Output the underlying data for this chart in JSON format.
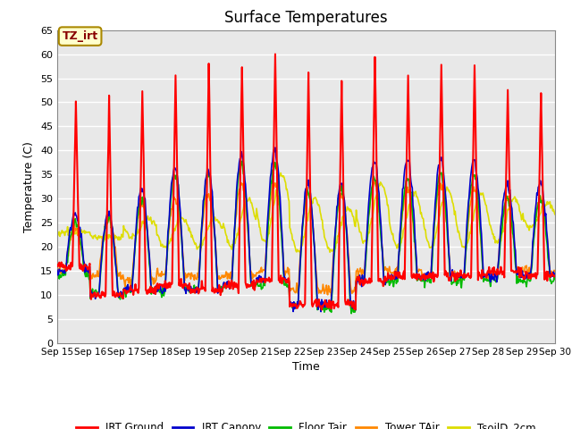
{
  "title": "Surface Temperatures",
  "xlabel": "Time",
  "ylabel": "Temperature (C)",
  "ylim": [
    0,
    65
  ],
  "yticks": [
    0,
    5,
    10,
    15,
    20,
    25,
    30,
    35,
    40,
    45,
    50,
    55,
    60,
    65
  ],
  "bg_color": "#ffffff",
  "plot_bg_color": "#e8e8e8",
  "legend_entries": [
    "IRT Ground",
    "IRT Canopy",
    "Floor Tair",
    "Tower TAir",
    "TsoilD_2cm"
  ],
  "legend_colors": [
    "#ff0000",
    "#0000cc",
    "#00bb00",
    "#ff8800",
    "#dddd00"
  ],
  "annotation_text": "TZ_irt",
  "annotation_fg": "#880000",
  "annotation_bg": "#ffffcc",
  "annotation_edge": "#aa8800",
  "series_colors": {
    "irt_ground": "#ff0000",
    "irt_canopy": "#0000cc",
    "floor_tair": "#00bb00",
    "tower_tair": "#ff8800",
    "tsoil_2cm": "#dddd00"
  },
  "n_days": 15,
  "pts_per_day": 48,
  "irt_ground_peaks": [
    50,
    51,
    53,
    56,
    58,
    58,
    60,
    56,
    55,
    60,
    56,
    58,
    57,
    52,
    52
  ],
  "irt_ground_mins": [
    16,
    10,
    11,
    12,
    11,
    12,
    13,
    8,
    8,
    13,
    14,
    14,
    14,
    15,
    14
  ],
  "irt_canopy_peaks": [
    27,
    27,
    32,
    36,
    36,
    39,
    40,
    33,
    33,
    38,
    38,
    38,
    38,
    33,
    33
  ],
  "irt_canopy_mins": [
    15,
    10,
    11,
    11,
    11,
    12,
    13,
    8,
    8,
    13,
    14,
    14,
    14,
    14,
    14
  ],
  "floor_tair_peaks": [
    25,
    26,
    30,
    35,
    35,
    37,
    37,
    32,
    32,
    34,
    34,
    35,
    35,
    30,
    30
  ],
  "floor_tair_mins": [
    14,
    10,
    11,
    11,
    11,
    12,
    12,
    8,
    7,
    13,
    13,
    13,
    13,
    13,
    13
  ],
  "tower_tair_peaks": [
    24,
    26,
    29,
    30,
    31,
    33,
    33,
    31,
    31,
    33,
    32,
    33,
    32,
    30,
    30
  ],
  "tower_tair_mins": [
    15,
    14,
    13,
    14,
    14,
    14,
    15,
    11,
    11,
    15,
    15,
    14,
    14,
    15,
    15
  ],
  "tsoil_day": [
    23,
    22,
    26,
    26,
    26,
    30,
    35,
    30,
    28,
    33,
    31,
    32,
    31,
    30,
    29
  ],
  "tsoil_night": [
    23,
    22,
    22,
    20,
    20,
    20,
    21,
    19,
    19,
    21,
    20,
    20,
    20,
    21,
    24
  ]
}
